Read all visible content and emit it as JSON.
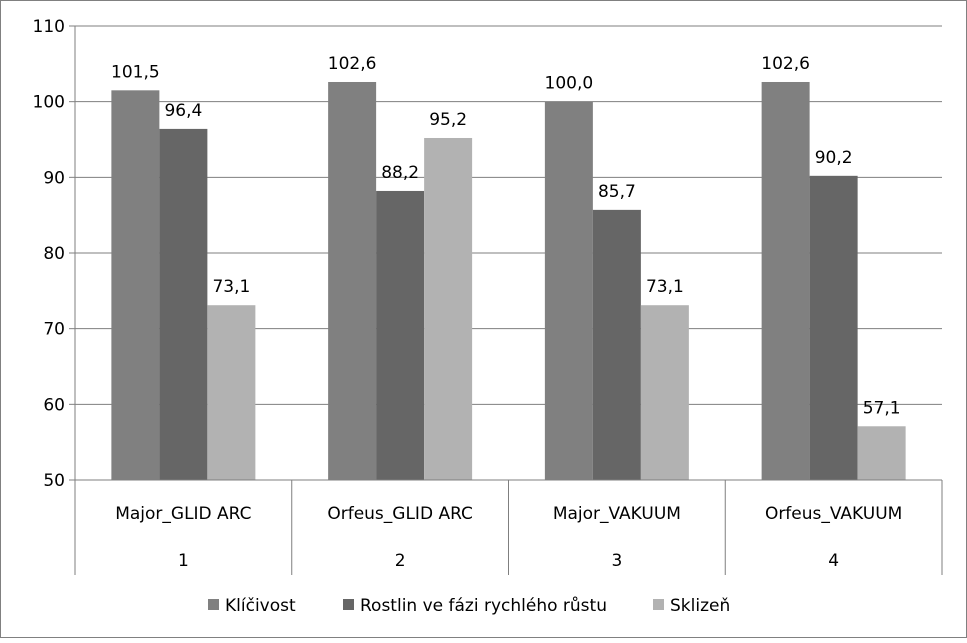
{
  "chart_data": {
    "type": "bar",
    "title": "",
    "xlabel": "",
    "ylabel": "",
    "ylim": [
      50,
      110
    ],
    "yticks": [
      "50",
      "60",
      "70",
      "80",
      "90",
      "100",
      "110"
    ],
    "grid": true,
    "legend_position": "bottom",
    "categories": [
      {
        "label": "Major_GLID ARC",
        "group": "1"
      },
      {
        "label": "Orfeus_GLID ARC",
        "group": "2"
      },
      {
        "label": "Major_VAKUUM",
        "group": "3"
      },
      {
        "label": "Orfeus_VAKUUM",
        "group": "4"
      }
    ],
    "series": [
      {
        "name": "Klíčivost",
        "color": "#808080",
        "values": [
          101.5,
          102.6,
          100.0,
          102.6
        ],
        "labels": [
          "101,5",
          "102,6",
          "100,0",
          "102,6"
        ]
      },
      {
        "name": "Rostlin ve fázi rychlého růstu",
        "color": "#666666",
        "values": [
          96.4,
          88.2,
          85.7,
          90.2
        ],
        "labels": [
          "96,4",
          "88,2",
          "85,7",
          "90,2"
        ]
      },
      {
        "name": "Sklizeň",
        "color": "#b2b2b2",
        "values": [
          73.1,
          95.2,
          73.1,
          57.1
        ],
        "labels": [
          "73,1",
          "95,2",
          "73,1",
          "57,1"
        ]
      }
    ]
  }
}
